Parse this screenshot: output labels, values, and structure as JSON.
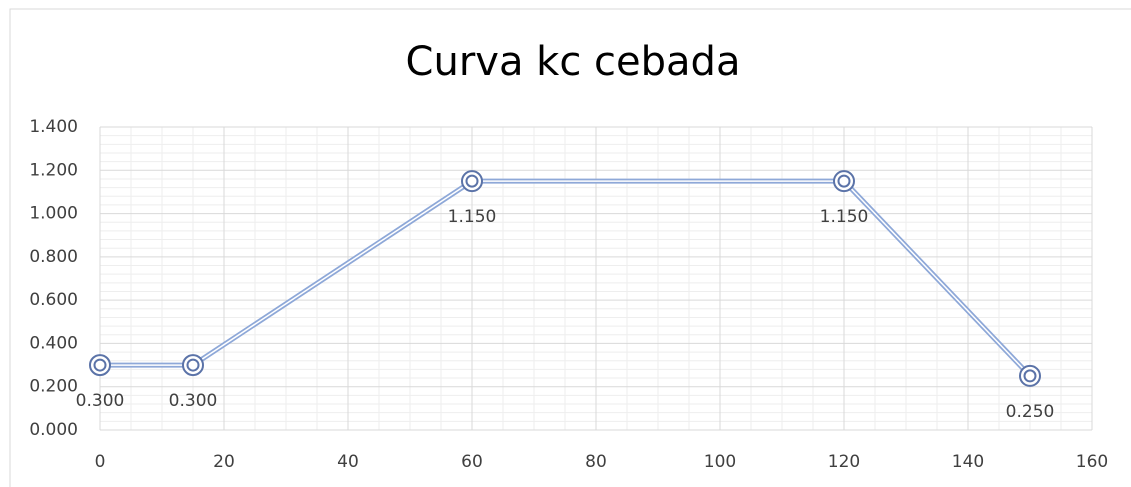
{
  "chart_data": {
    "type": "line",
    "title": "Curva kc cebada",
    "x": [
      0,
      15,
      60,
      120,
      150
    ],
    "series": [
      {
        "color": "#8ea8d8",
        "marker_color": "#5b73a8",
        "values": [
          0.3,
          0.3,
          1.15,
          1.15,
          0.25
        ],
        "value_labels": [
          "0.300",
          "0.300",
          "1.150",
          "1.150",
          "0.250"
        ]
      }
    ],
    "xlim": [
      0,
      160
    ],
    "xticks": [
      0,
      20,
      40,
      60,
      80,
      100,
      120,
      140,
      160
    ],
    "ylim": [
      0,
      1.4
    ],
    "yticks": [
      {
        "value": 0,
        "label": "0.000"
      },
      {
        "value": 0.2,
        "label": "0.200"
      },
      {
        "value": 0.4,
        "label": "0.400"
      },
      {
        "value": 0.6,
        "label": "0.600"
      },
      {
        "value": 0.8,
        "label": "0.800"
      },
      {
        "value": 1.0,
        "label": "1.000"
      },
      {
        "value": 1.2,
        "label": "1.200"
      },
      {
        "value": 1.4,
        "label": "1.400"
      }
    ],
    "grid": true,
    "minor_grid": true
  }
}
